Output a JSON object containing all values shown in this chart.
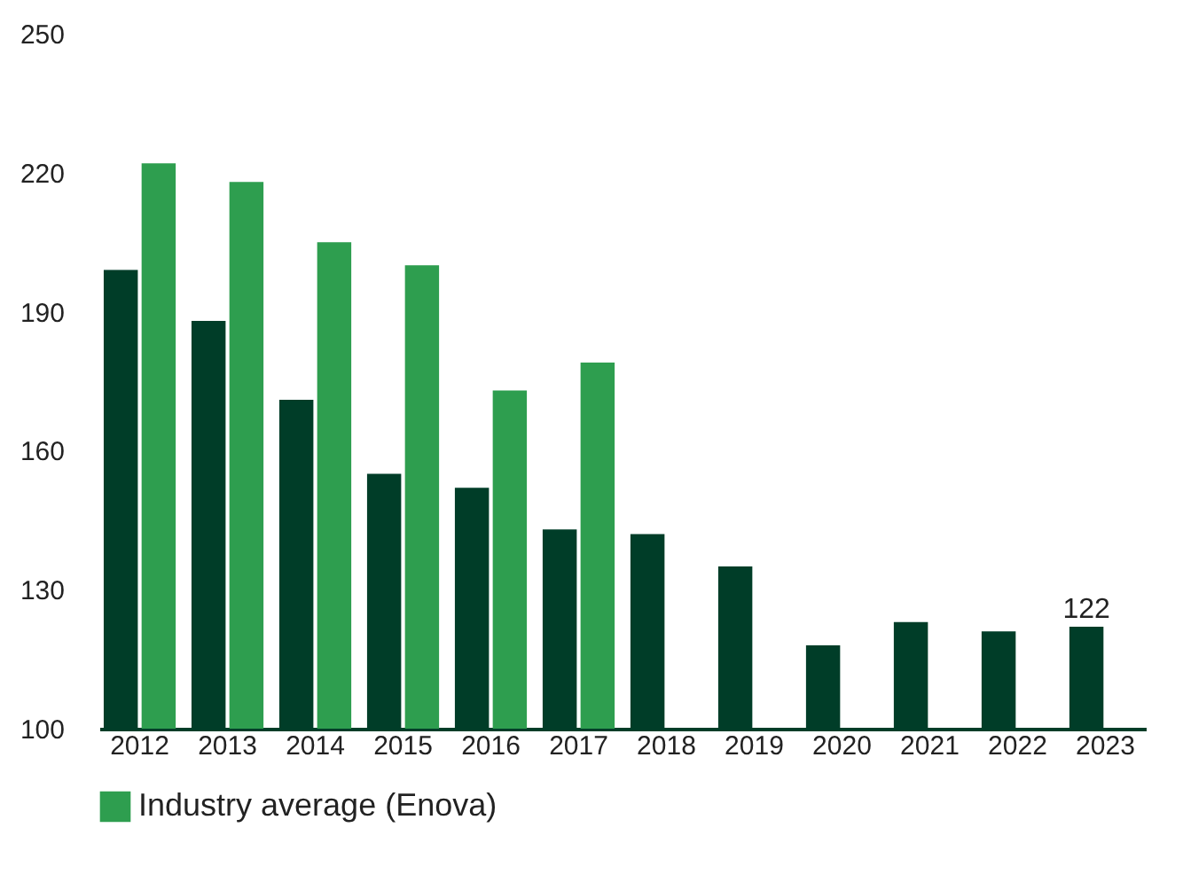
{
  "chart_data": {
    "type": "bar",
    "categories": [
      "2012",
      "2013",
      "2014",
      "2015",
      "2016",
      "2017",
      "2018",
      "2019",
      "2020",
      "2021",
      "2022",
      "2023"
    ],
    "series": [
      {
        "color": "#003d28",
        "values": [
          199,
          188,
          171,
          155,
          152,
          143,
          142,
          135,
          118,
          123,
          121,
          122
        ],
        "value_labels": [
          null,
          null,
          null,
          null,
          null,
          null,
          null,
          null,
          null,
          null,
          null,
          "122"
        ]
      },
      {
        "name": "Industry average (Enova)",
        "color": "#2e9e4f",
        "values": [
          222,
          218,
          205,
          200,
          173,
          179,
          null,
          null,
          null,
          null,
          null,
          null
        ]
      }
    ],
    "ylim": [
      100,
      250
    ],
    "yticks": [
      100,
      130,
      160,
      190,
      220,
      250
    ],
    "grid": false,
    "legend": "bottom left"
  }
}
